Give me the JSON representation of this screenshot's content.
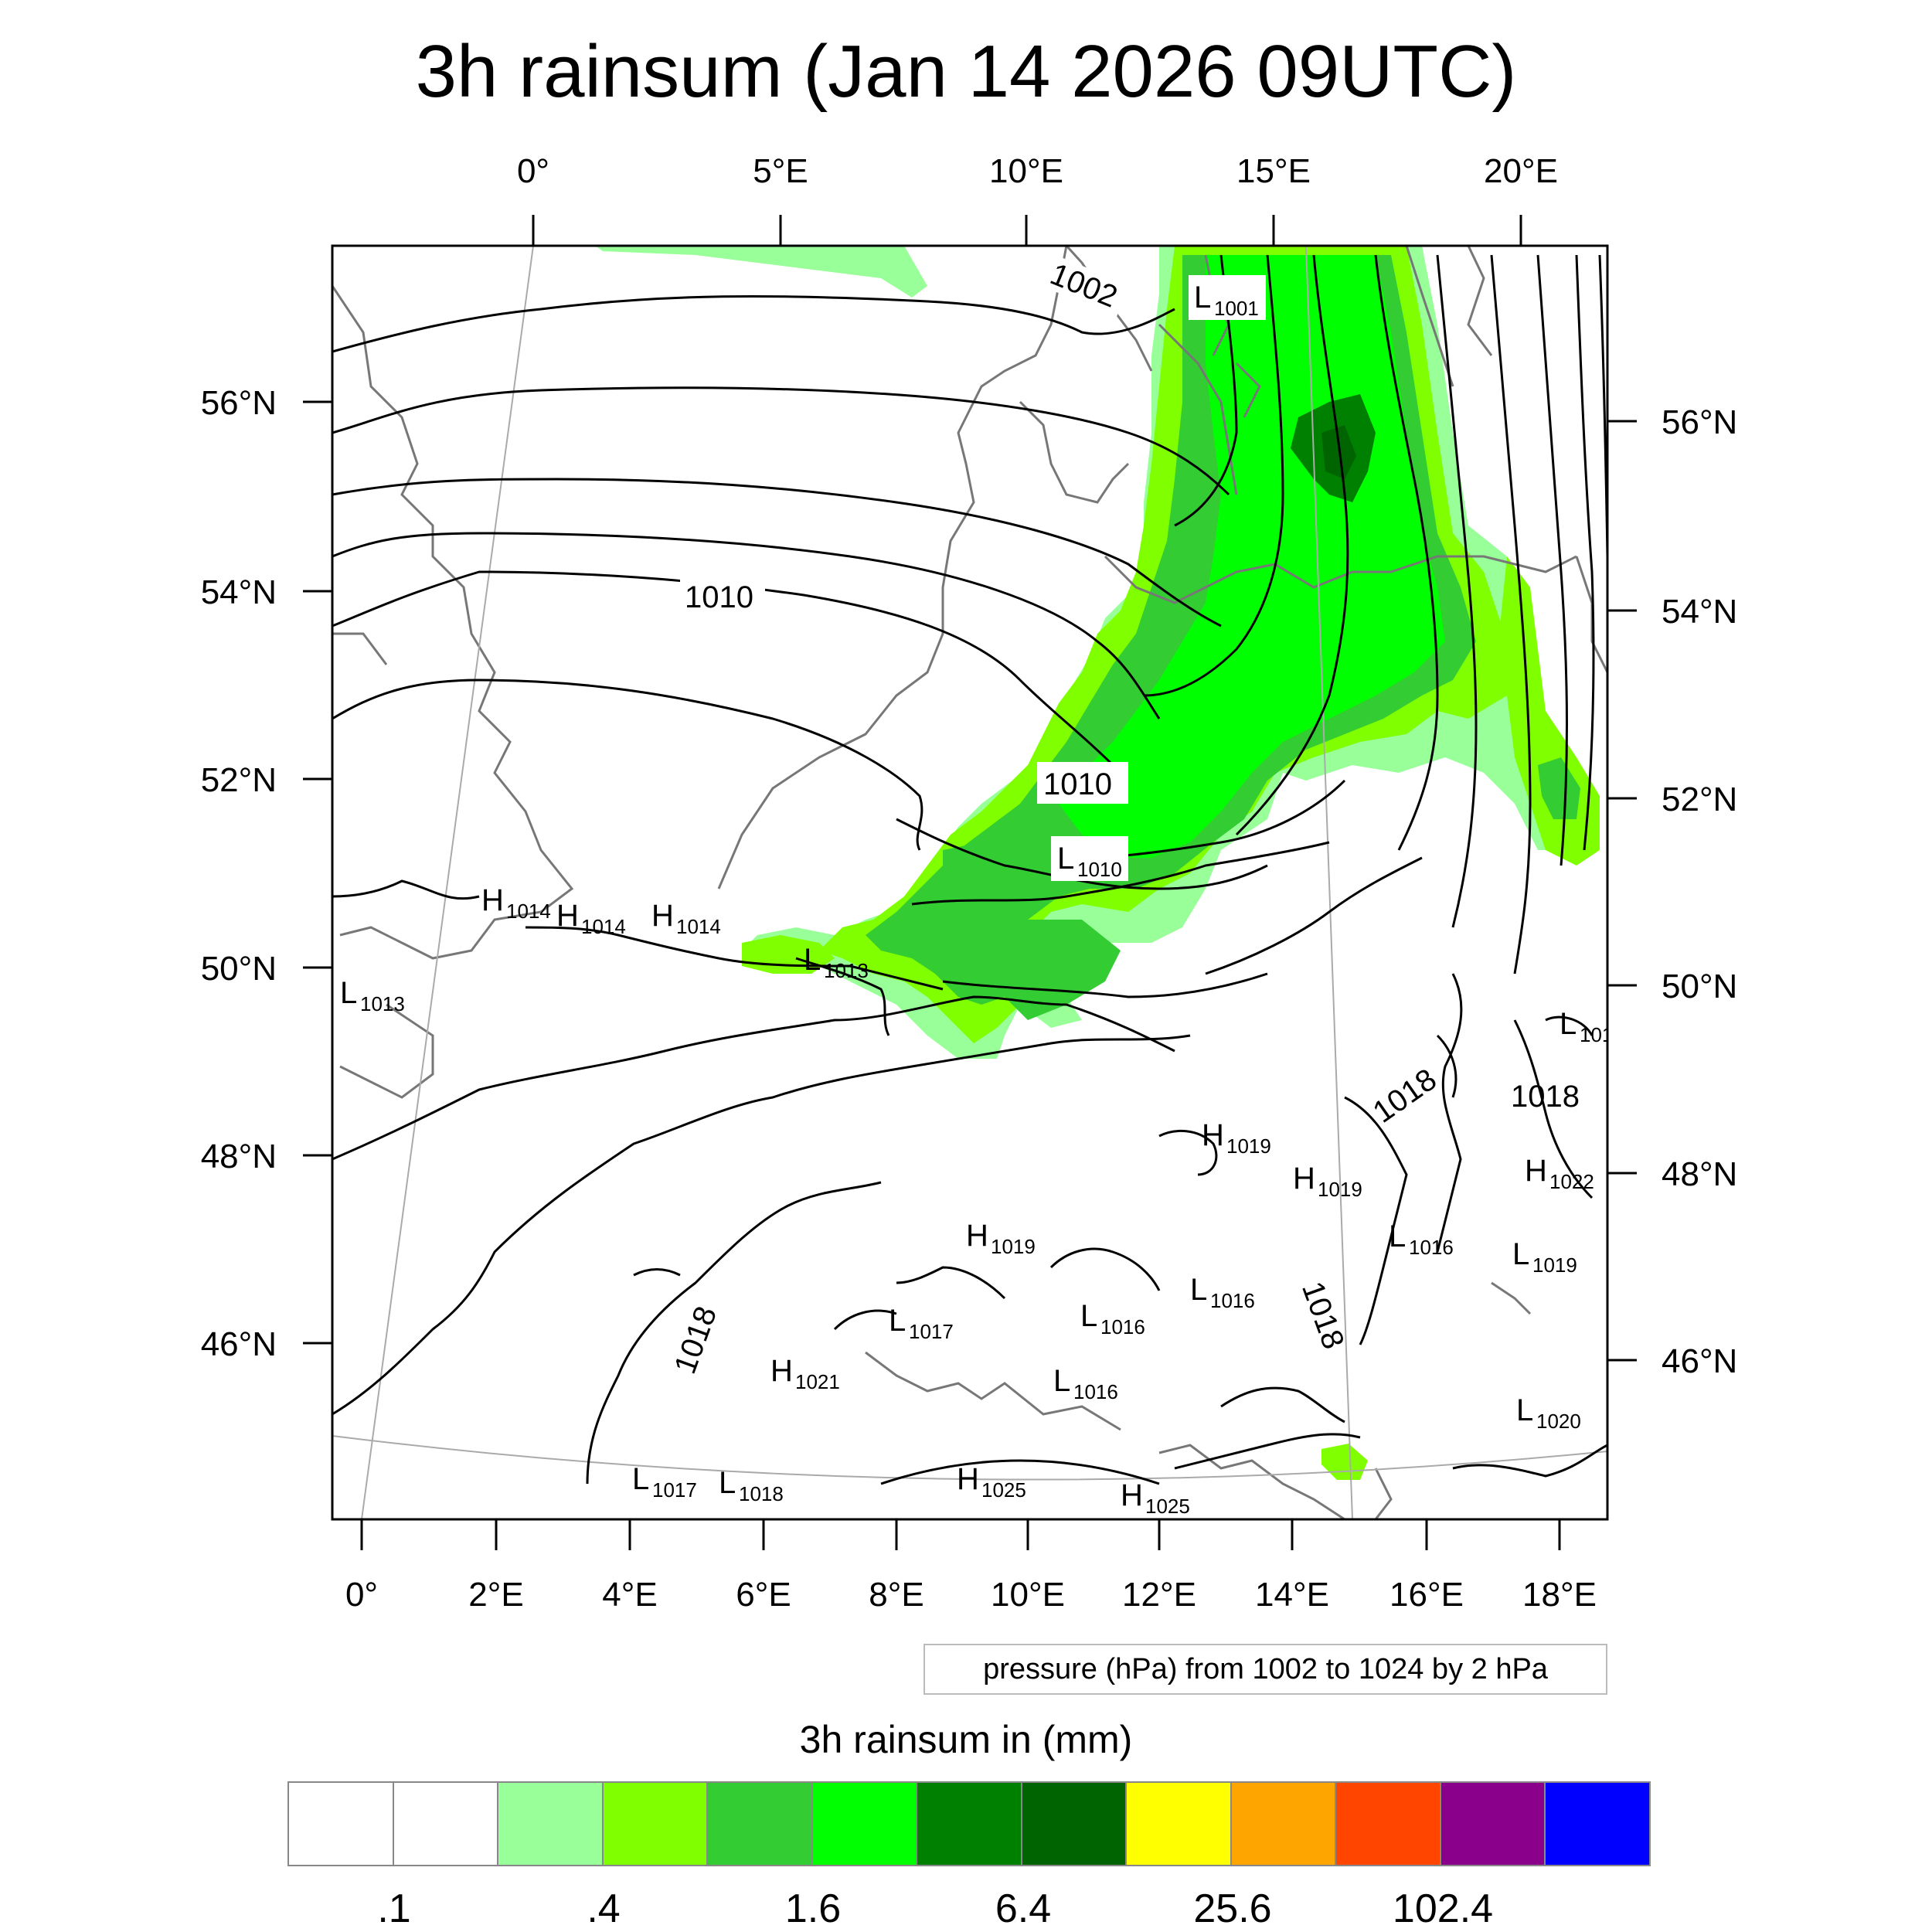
{
  "title": "3h rainsum (Jan 14 2026 09UTC)",
  "top_lon_labels": [
    "0°",
    "5°E",
    "10°E",
    "15°E",
    "20°E"
  ],
  "bottom_lon_labels": [
    "0°",
    "2°E",
    "4°E",
    "6°E",
    "8°E",
    "10°E",
    "12°E",
    "14°E",
    "16°E",
    "18°E"
  ],
  "left_lat_labels": [
    "56°N",
    "54°N",
    "52°N",
    "50°N",
    "48°N",
    "46°N"
  ],
  "right_lat_labels": [
    "56°N",
    "54°N",
    "52°N",
    "50°N",
    "48°N",
    "46°N"
  ],
  "pressure_centers": [
    {
      "type": "L",
      "value": "1001"
    },
    {
      "type": "L",
      "value": "1010"
    },
    {
      "type": "H",
      "value": "1014"
    },
    {
      "type": "H",
      "value": "1014"
    },
    {
      "type": "H",
      "value": "1014"
    },
    {
      "type": "L",
      "value": "1013"
    },
    {
      "type": "L",
      "value": "1013"
    },
    {
      "type": "L",
      "value": "101"
    },
    {
      "type": "H",
      "value": "1019"
    },
    {
      "type": "H",
      "value": "1019"
    },
    {
      "type": "H",
      "value": "1022"
    },
    {
      "type": "H",
      "value": "1019"
    },
    {
      "type": "L",
      "value": "1016"
    },
    {
      "type": "L",
      "value": "1019"
    },
    {
      "type": "L",
      "value": "1017"
    },
    {
      "type": "L",
      "value": "1016"
    },
    {
      "type": "L",
      "value": "1016"
    },
    {
      "type": "H",
      "value": "1021"
    },
    {
      "type": "L",
      "value": "1016"
    },
    {
      "type": "L",
      "value": "1020"
    },
    {
      "type": "L",
      "value": "1017"
    },
    {
      "type": "L",
      "value": "1018"
    },
    {
      "type": "H",
      "value": "1025"
    },
    {
      "type": "H",
      "value": "1025"
    }
  ],
  "contour_labels": [
    "1002",
    "1010",
    "1010",
    "1018",
    "1018",
    "1018",
    "1018"
  ],
  "info_box": "pressure (hPa) from 1002 to 1024 by 2 hPa",
  "colorbar": {
    "title": "3h rainsum in (mm)",
    "colors": [
      "#ffffff",
      "#ffffff",
      "#99ff99",
      "#80ff00",
      "#33cc33",
      "#00ff00",
      "#008000",
      "#006400",
      "#ffff00",
      "#ffa500",
      "#ff4500",
      "#8b008b",
      "#0000ff"
    ],
    "labels": [
      ".1",
      ".4",
      "1.6",
      "6.4",
      "25.6",
      "102.4"
    ]
  },
  "rain_colors": {
    "light": "#99ff99",
    "lime": "#80ff00",
    "mid": "#33cc33",
    "bright": "#00ff00",
    "dark": "#008000",
    "darkest": "#006400"
  }
}
